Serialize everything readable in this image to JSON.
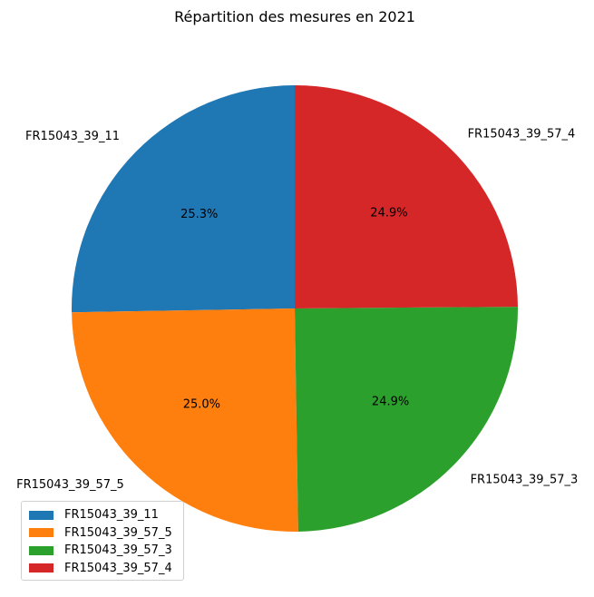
{
  "chart_data": {
    "type": "pie",
    "title": "Répartition des mesures en 2021",
    "start_angle_deg": 90,
    "direction": "counterclockwise",
    "slices": [
      {
        "label": "FR15043_39_11",
        "value": 25.3,
        "pct_label": "25.3%",
        "color": "#1f77b4"
      },
      {
        "label": "FR15043_39_57_5",
        "value": 25.0,
        "pct_label": "25.0%",
        "color": "#ff7f0e"
      },
      {
        "label": "FR15043_39_57_3",
        "value": 24.9,
        "pct_label": "24.9%",
        "color": "#2ca02c"
      },
      {
        "label": "FR15043_39_57_4",
        "value": 24.9,
        "pct_label": "24.9%",
        "color": "#d62728"
      }
    ],
    "legend_position": "lower-left"
  }
}
